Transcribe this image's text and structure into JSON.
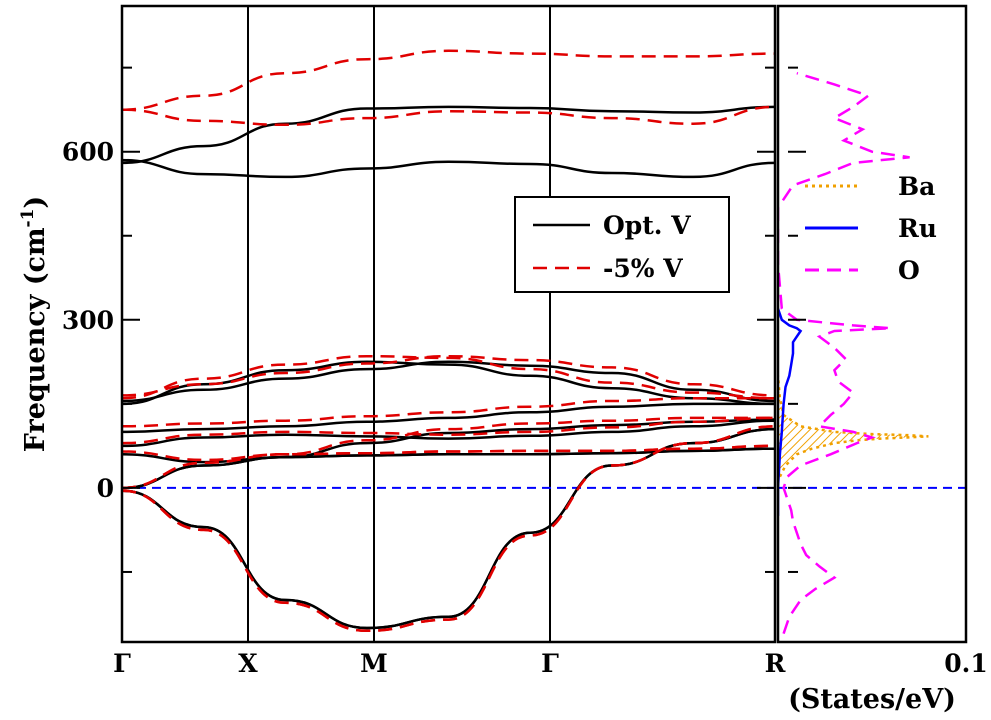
{
  "chart_data": [
    {
      "type": "line",
      "title": "",
      "ylabel": "Frequency (cm",
      "ylabel_sup": "-1",
      "ylabel_close": ")",
      "ylim": [
        -275,
        860
      ],
      "kpoints": [
        "Γ",
        "X",
        "M",
        "Γ",
        "R"
      ],
      "yticks": [
        0,
        300,
        600
      ],
      "grid": false,
      "legend": {
        "placement": "center-right",
        "entries": [
          "Opt. V",
          "-5% V"
        ]
      },
      "series": [
        {
          "name": "Opt. V",
          "color": "#000000",
          "dash": "solid",
          "bands": [
            [
              -5,
              -70,
              -200,
              -250,
              -230,
              -80,
              40,
              80,
              105
            ],
            [
              -5,
              -70,
              -200,
              -250,
              -230,
              -80,
              40,
              80,
              105
            ],
            [
              0,
              40,
              55,
              58,
              60,
              60,
              62,
              66,
              70
            ],
            [
              0,
              40,
              55,
              58,
              60,
              60,
              62,
              66,
              70
            ],
            [
              60,
              46,
              55,
              80,
              98,
              105,
              112,
              118,
              122
            ],
            [
              75,
              90,
              95,
              92,
              88,
              93,
              100,
              110,
              120
            ],
            [
              100,
              105,
              110,
              118,
              125,
              135,
              145,
              150,
              150
            ],
            [
              150,
              185,
              210,
              225,
              220,
              200,
              178,
              160,
              150
            ],
            [
              155,
              175,
              195,
              212,
              225,
              218,
              205,
              175,
              155
            ],
            [
              585,
              560,
              555,
              570,
              582,
              578,
              562,
              555,
              580
            ],
            [
              580,
              610,
              650,
              677,
              680,
              678,
              672,
              670,
              680
            ]
          ]
        },
        {
          "name": "-5% V",
          "color": "#e00000",
          "dash": "dashed",
          "bands": [
            [
              -5,
              -75,
              -205,
              -255,
              -235,
              -85,
              40,
              80,
              110
            ],
            [
              -5,
              -75,
              -205,
              -255,
              -235,
              -85,
              40,
              80,
              110
            ],
            [
              0,
              45,
              60,
              62,
              65,
              66,
              66,
              70,
              75
            ],
            [
              0,
              45,
              60,
              62,
              65,
              66,
              66,
              70,
              75
            ],
            [
              65,
              50,
              60,
              85,
              105,
              115,
              120,
              125,
              125
            ],
            [
              80,
              95,
              100,
              98,
              95,
              100,
              108,
              118,
              125
            ],
            [
              110,
              115,
              120,
              128,
              135,
              145,
              155,
              160,
              160
            ],
            [
              160,
              195,
              220,
              235,
              232,
              212,
              188,
              170,
              160
            ],
            [
              165,
              185,
              205,
              222,
              235,
              228,
              215,
              185,
              165
            ],
            [
              675,
              655,
              648,
              660,
              672,
              670,
              660,
              650,
              680
            ],
            [
              675,
              700,
              740,
              765,
              780,
              775,
              770,
              770,
              775
            ]
          ]
        }
      ]
    },
    {
      "type": "line",
      "title": "",
      "xlabel": "(States/eV)",
      "xlim": [
        0,
        0.1
      ],
      "xtick_labels": [
        "0.1"
      ],
      "legend": {
        "placement": "top-right",
        "entries": [
          "Ba",
          "Ru",
          "O"
        ]
      },
      "series": [
        {
          "name": "Ba",
          "color": "#f0a000",
          "dash": "dotted",
          "freq": [
            20,
            40,
            60,
            70,
            80,
            85,
            88,
            90,
            92,
            94,
            96,
            100,
            110,
            130,
            160,
            200
          ],
          "dos": [
            0.001,
            0.004,
            0.01,
            0.018,
            0.03,
            0.042,
            0.055,
            0.068,
            0.08,
            0.07,
            0.05,
            0.03,
            0.012,
            0.003,
            0.001,
            0.0
          ]
        },
        {
          "name": "Ru",
          "color": "#0000ff",
          "dash": "solid",
          "freq": [
            -50,
            0,
            60,
            100,
            150,
            180,
            200,
            220,
            240,
            260,
            270,
            280,
            285,
            290,
            300,
            320
          ],
          "dos": [
            0.0,
            0.0,
            0.001,
            0.002,
            0.003,
            0.004,
            0.006,
            0.007,
            0.008,
            0.008,
            0.01,
            0.012,
            0.01,
            0.006,
            0.002,
            0.0
          ]
        },
        {
          "name": "O",
          "color": "#ff00ff",
          "dash": "dashed",
          "freq": [
            -260,
            -230,
            -200,
            -180,
            -160,
            -140,
            -120,
            -100,
            -80,
            -60,
            -40,
            -20,
            0,
            20,
            40,
            60,
            80,
            90,
            100,
            110,
            130,
            150,
            170,
            190,
            210,
            230,
            250,
            270,
            280,
            285,
            290,
            300,
            320,
            400,
            500,
            540,
            560,
            580,
            590,
            600,
            620,
            640,
            660,
            680,
            700,
            720,
            740
          ],
          "dos": [
            0.003,
            0.006,
            0.012,
            0.02,
            0.03,
            0.022,
            0.015,
            0.012,
            0.01,
            0.008,
            0.007,
            0.005,
            0.003,
            0.005,
            0.012,
            0.028,
            0.042,
            0.05,
            0.04,
            0.022,
            0.028,
            0.035,
            0.04,
            0.032,
            0.03,
            0.036,
            0.03,
            0.022,
            0.03,
            0.06,
            0.04,
            0.01,
            0.002,
            0.0,
            0.0,
            0.008,
            0.025,
            0.04,
            0.07,
            0.05,
            0.035,
            0.045,
            0.03,
            0.04,
            0.048,
            0.03,
            0.01
          ]
        }
      ]
    }
  ]
}
